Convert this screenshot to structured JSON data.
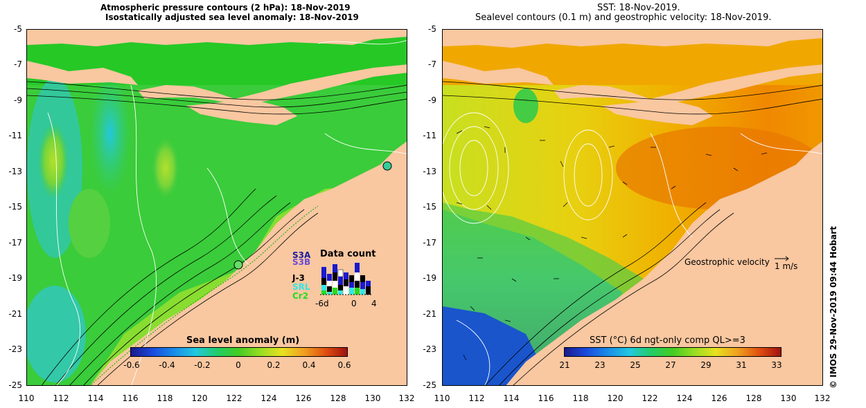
{
  "left_panel": {
    "title_line1": "Atmospheric pressure contours (2 hPa): 18-Nov-2019",
    "title_line2": "Isostatically adjusted sea level anomaly: 18-Nov-2019",
    "colorbar_label": "Sea level anomaly (m)",
    "colorbar_ticks": [
      "-0.6",
      "-0.4",
      "-0.2",
      "0",
      "0.2",
      "0.4",
      "0.6"
    ],
    "data_count": {
      "title": "Data count",
      "satellites": [
        {
          "name": "S3A",
          "color": "#1a1aa0"
        },
        {
          "name": "S3B",
          "color": "#6a4ad8"
        },
        {
          "name": "J-3",
          "color": "#000000"
        },
        {
          "name": "SRL",
          "color": "#33e6e6"
        },
        {
          "name": "Cr2",
          "color": "#22dd22"
        }
      ],
      "axis_labels": [
        "-6d",
        "0",
        "4"
      ]
    }
  },
  "right_panel": {
    "title_line1": "SST: 18-Nov-2019.",
    "title_line2": "Sealevel contours (0.1 m) and geostrophic velocity: 18-Nov-2019.",
    "velocity_label": "Geostrophic velocity",
    "velocity_scale": "1 m/s",
    "colorbar_label": "SST (°C) 6d ngt-only comp QL>=3",
    "colorbar_ticks": [
      "21",
      "23",
      "25",
      "27",
      "29",
      "31",
      "33"
    ]
  },
  "axes": {
    "y_ticks": [
      "-5",
      "-7",
      "-9",
      "-11",
      "-13",
      "-15",
      "-17",
      "-19",
      "-21",
      "-23",
      "-25"
    ],
    "x_ticks": [
      "110",
      "112",
      "114",
      "116",
      "118",
      "120",
      "122",
      "124",
      "126",
      "128",
      "130",
      "132"
    ]
  },
  "credit": "© IMOS 29-Nov-2019 09:44 Hobart",
  "colors": {
    "land": "#f9c7a0",
    "sla_ocean": "#33cc33",
    "sst_ocean": "#f0b000"
  }
}
